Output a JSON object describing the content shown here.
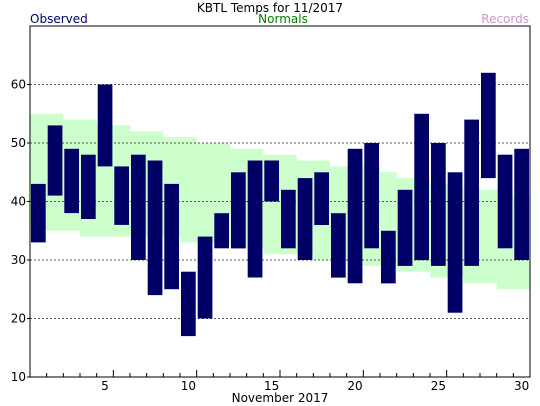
{
  "chart_data": {
    "type": "bar",
    "title": "KBTL Temps for  11/2017",
    "xlabel": "November 2017",
    "ylabel": "",
    "legend": {
      "observed": "Observed",
      "normals": "Normals",
      "records": "Records"
    },
    "colors": {
      "observed": "#000066",
      "normals_text": "#008000",
      "normals_band": "#ccffcc",
      "records": "#cc99cc",
      "grid": "#555555"
    },
    "x": [
      1,
      2,
      3,
      4,
      5,
      6,
      7,
      8,
      9,
      10,
      11,
      12,
      13,
      14,
      15,
      16,
      17,
      18,
      19,
      20,
      21,
      22,
      23,
      24,
      25,
      26,
      27,
      28,
      29,
      30
    ],
    "xlim": [
      0.5,
      30.5
    ],
    "ylim": [
      10,
      70
    ],
    "x_ticks": [
      5,
      10,
      15,
      20,
      25,
      30
    ],
    "x_tick_labels": [
      "5",
      "10",
      "15",
      "20",
      "25",
      "30"
    ],
    "y_ticks": [
      10,
      20,
      30,
      40,
      50,
      60
    ],
    "y_tick_labels": [
      "10",
      "20",
      "30",
      "40",
      "50",
      "60"
    ],
    "gridlines": [
      20,
      30,
      40,
      50,
      60
    ],
    "series": [
      {
        "name": "Observed",
        "high": [
          43,
          53,
          49,
          48,
          60,
          46,
          48,
          47,
          43,
          28,
          34,
          38,
          45,
          47,
          47,
          42,
          44,
          45,
          38,
          49,
          50,
          35,
          42,
          55,
          50,
          45,
          54,
          62,
          48,
          49
        ],
        "low": [
          33,
          41,
          38,
          37,
          46,
          36,
          30,
          24,
          25,
          17,
          20,
          32,
          32,
          27,
          40,
          32,
          30,
          36,
          27,
          26,
          32,
          26,
          29,
          30,
          29,
          21,
          29,
          44,
          32,
          30
        ]
      },
      {
        "name": "Normals",
        "high": [
          55,
          55,
          54,
          54,
          53,
          53,
          52,
          52,
          51,
          51,
          50,
          50,
          49,
          49,
          48,
          48,
          47,
          47,
          46,
          46,
          46,
          45,
          44,
          44,
          43,
          43,
          42,
          42,
          42,
          41
        ],
        "low": [
          35,
          35,
          35,
          34,
          34,
          34,
          34,
          34,
          34,
          33,
          33,
          33,
          32,
          32,
          31,
          31,
          31,
          30,
          30,
          30,
          29,
          29,
          28,
          28,
          27,
          27,
          26,
          26,
          25,
          25
        ]
      }
    ]
  }
}
